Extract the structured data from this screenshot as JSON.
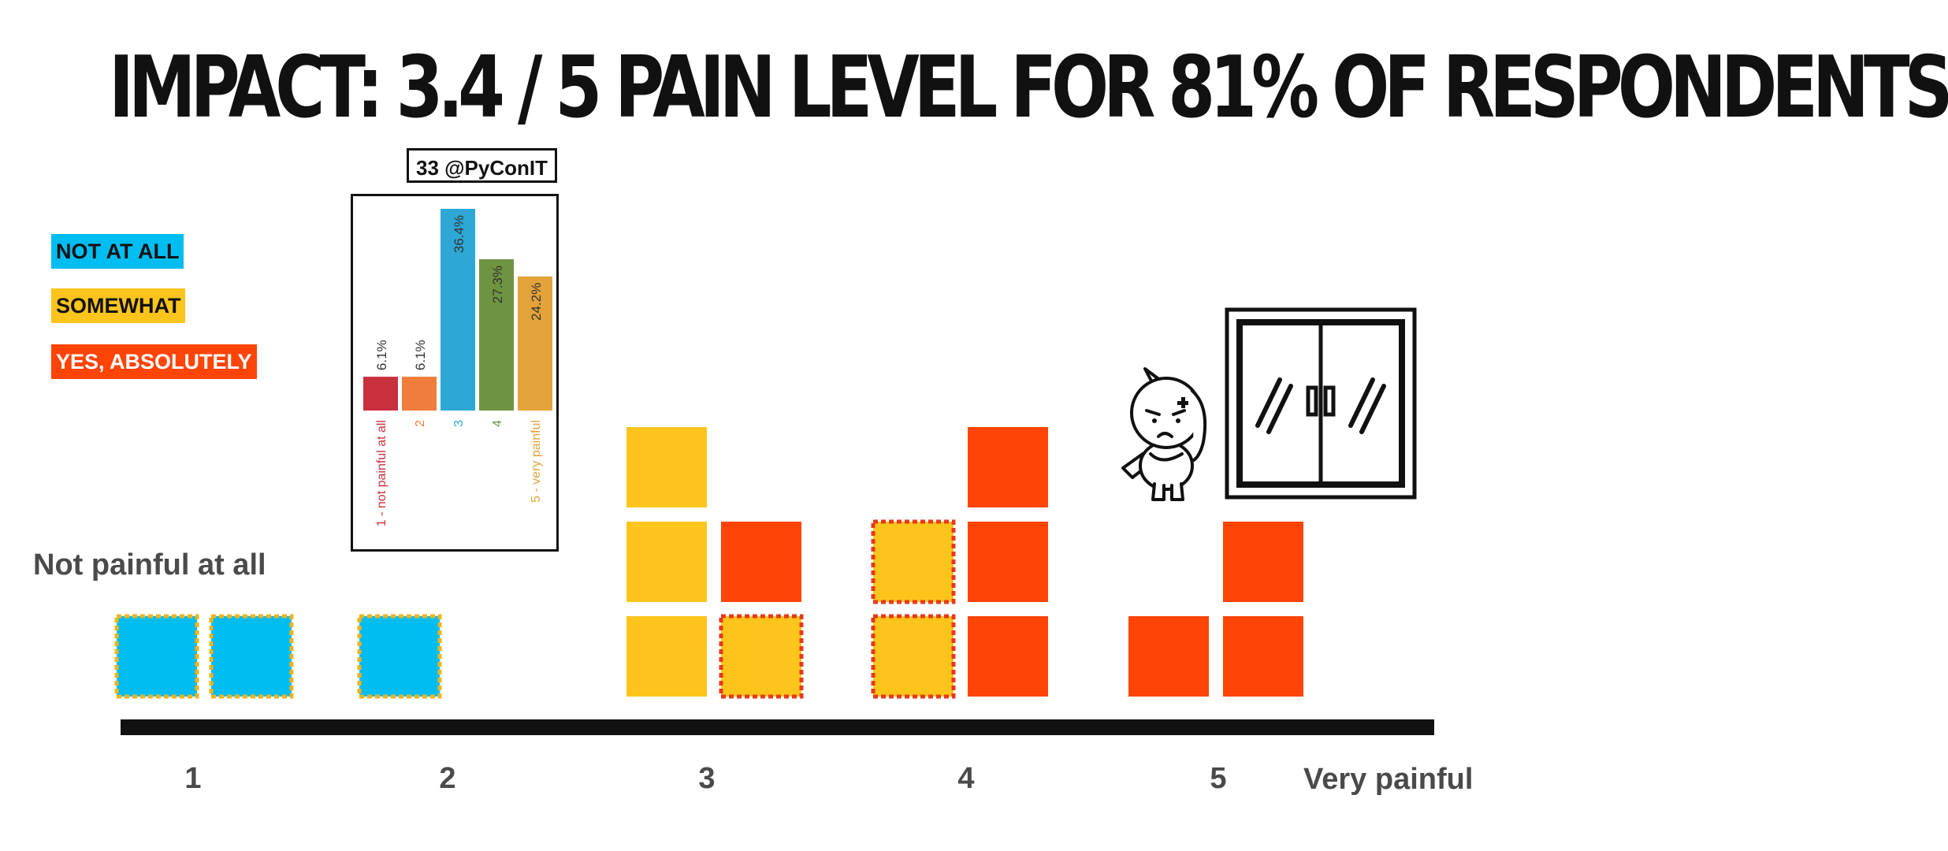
{
  "title": "IMPACT: 3.4 / 5 PAIN LEVEL FOR  81% OF RESPONDENTS",
  "legend": {
    "not_at_all": "NOT AT ALL",
    "somewhat": "SOMEWHAT",
    "yes_absolutely": "YES, ABSOLUTELY"
  },
  "scale_min_label": "Not painful at all",
  "scale_max_label": "Very painful",
  "inset_header": "33 @PyConIT",
  "colors": {
    "not_at_all": "#00bdf1",
    "somewhat": "#fdc41c",
    "yes_absolutely": "#ff4407",
    "dashed_border_blue": "#f2b31b",
    "dashed_border_yellow": "#e8391b"
  },
  "icons": [
    "sad-unicorn-icon",
    "closed-window-icon"
  ],
  "chart_data": [
    {
      "type": "bar",
      "description_kind": "stacked unit blocks per pain level",
      "categories": [
        "1",
        "2",
        "3",
        "4",
        "5"
      ],
      "series": [
        {
          "name": "NOT AT ALL",
          "values": [
            2,
            1,
            0,
            0,
            0
          ],
          "style": "dashed-border"
        },
        {
          "name": "SOMEWHAT",
          "values": [
            0,
            0,
            4,
            2,
            0
          ]
        },
        {
          "name": "YES, ABSOLUTELY",
          "values": [
            0,
            0,
            1,
            3,
            3
          ]
        }
      ],
      "blocks": [
        {
          "level": "1",
          "answer": "not_at_all",
          "col": 0,
          "row": 0,
          "dashed": true
        },
        {
          "level": "1",
          "answer": "not_at_all",
          "col": 1,
          "row": 0,
          "dashed": true
        },
        {
          "level": "2",
          "answer": "not_at_all",
          "col": 0,
          "row": 0,
          "dashed": true
        },
        {
          "level": "3",
          "answer": "somewhat",
          "col": 0,
          "row": 0,
          "dashed": false
        },
        {
          "level": "3",
          "answer": "somewhat",
          "col": 0,
          "row": 1,
          "dashed": false
        },
        {
          "level": "3",
          "answer": "somewhat",
          "col": 0,
          "row": 2,
          "dashed": false
        },
        {
          "level": "3",
          "answer": "yes_absolutely",
          "col": 1,
          "row": 1,
          "dashed": false
        },
        {
          "level": "3",
          "answer": "somewhat",
          "col": 1,
          "row": 0,
          "dashed": true
        },
        {
          "level": "4",
          "answer": "somewhat",
          "col": 0,
          "row": 0,
          "dashed": true
        },
        {
          "level": "4",
          "answer": "somewhat",
          "col": 0,
          "row": 1,
          "dashed": true
        },
        {
          "level": "4",
          "answer": "yes_absolutely",
          "col": 1,
          "row": 0,
          "dashed": false
        },
        {
          "level": "4",
          "answer": "yes_absolutely",
          "col": 1,
          "row": 1,
          "dashed": false
        },
        {
          "level": "4",
          "answer": "yes_absolutely",
          "col": 1,
          "row": 2,
          "dashed": false
        },
        {
          "level": "5",
          "answer": "yes_absolutely",
          "col": 0,
          "row": 0,
          "dashed": false
        },
        {
          "level": "5",
          "answer": "yes_absolutely",
          "col": 1,
          "row": 0,
          "dashed": false
        },
        {
          "level": "5",
          "answer": "yes_absolutely",
          "col": 1,
          "row": 1,
          "dashed": false
        }
      ],
      "xlabel": "",
      "ylabel": "",
      "grid": false
    },
    {
      "type": "bar",
      "categories": [
        "1 - not painful at all",
        "2",
        "3",
        "4",
        "5 - very painful"
      ],
      "values": [
        6.1,
        6.1,
        36.4,
        27.3,
        24.2
      ],
      "value_labels": [
        "6.1%",
        "6.1%",
        "36.4%",
        "27.3%",
        "24.2%"
      ],
      "bar_colors": [
        "#c9303e",
        "#f07d3b",
        "#2ea7d6",
        "#6e9442",
        "#e3a33a"
      ],
      "ylim": [
        0,
        36.4
      ],
      "grid": false,
      "legend": false
    }
  ]
}
